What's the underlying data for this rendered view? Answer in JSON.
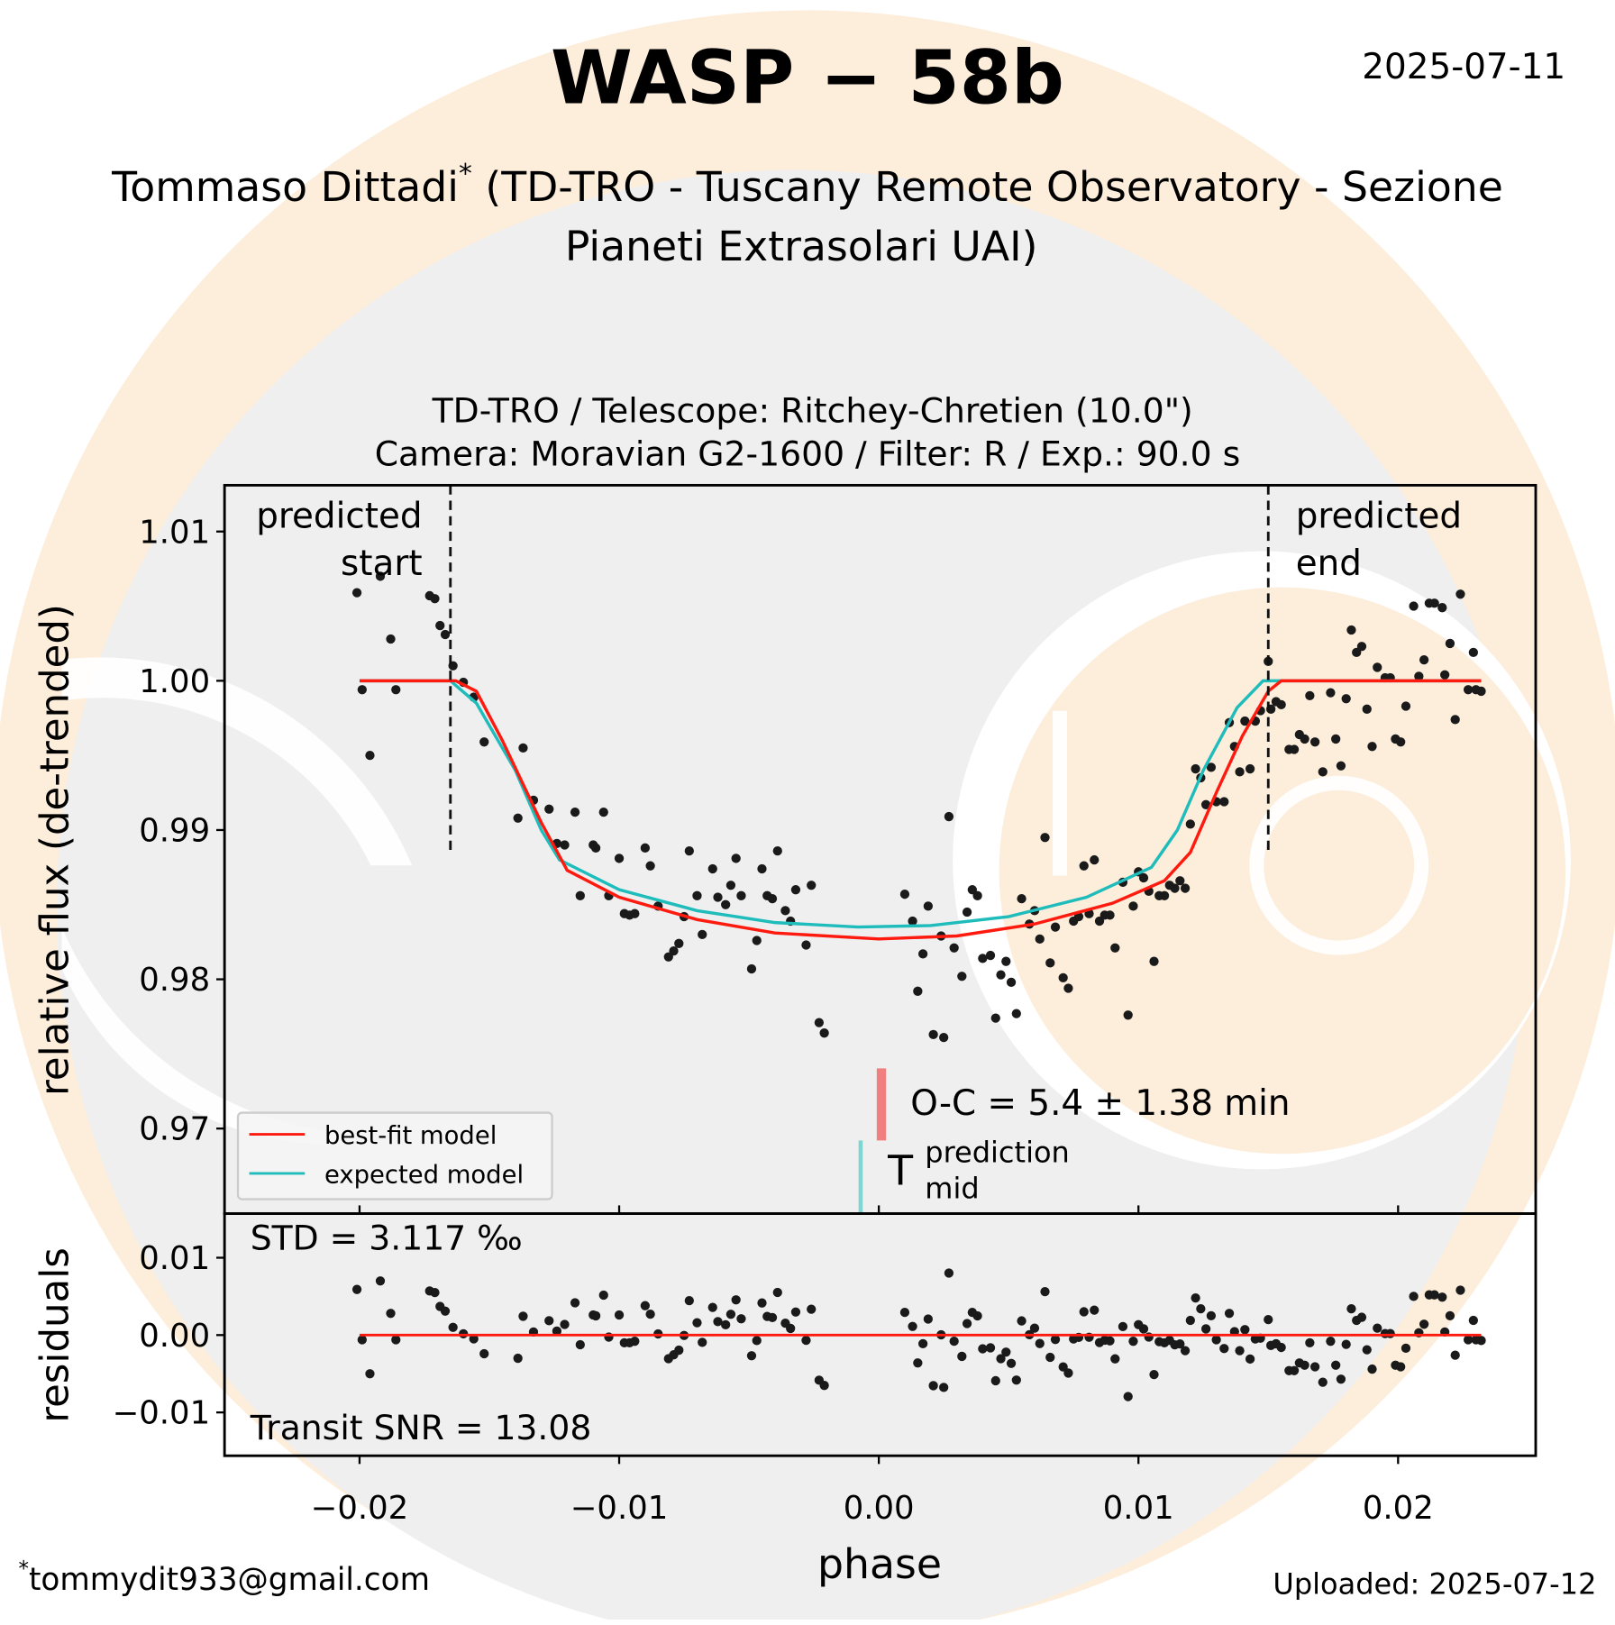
{
  "header": {
    "title": "WASP − 58b",
    "date": "2025-07-11",
    "author": "Tommaso Dittadi",
    "author_mark": "*",
    "affiliation_line1": " (TD-TRO - Tuscany Remote Observatory - Sezione",
    "affiliation_line2": "Pianeti Extrasolari UAI)"
  },
  "chart_subtitle": {
    "line1": "TD-TRO / Telescope: Ritchey-Chretien (10.0\")",
    "line2": "Camera: Moravian G2-1600 / Filter: R / Exp.: 90.0 s"
  },
  "footer": {
    "email_mark": "*",
    "email": "tommydit933@gmail.com",
    "uploaded": "Uploaded: 2025-07-12"
  },
  "colors": {
    "best_fit": "#ff1a0f",
    "expected": "#1fbcbc",
    "points": "#1a1a1a",
    "oc_marker": "#f08080",
    "tmid_marker": "#7fd6d0",
    "bg_orange": "#fdeedb",
    "bg_gray": "#efefef"
  },
  "chart_data": [
    {
      "type": "scatter",
      "panel": "light curve",
      "xlabel": "phase",
      "ylabel": "relative flux (de-trended)",
      "xlim": [
        -0.0252,
        0.0253
      ],
      "ylim": [
        0.9643,
        1.0131
      ],
      "yticks": [
        0.97,
        0.98,
        0.99,
        1.0,
        1.01
      ],
      "ytick_labels": [
        "0.97",
        "0.98",
        "0.99",
        "1.00",
        "1.01"
      ],
      "legend": {
        "placement": "lower-left",
        "entries": [
          "best-fit model",
          "expected model"
        ]
      },
      "annotations": {
        "predicted_start": {
          "label_line1": "predicted",
          "label_line2": "start",
          "phase": -0.0165
        },
        "predicted_end": {
          "label_line1": "predicted",
          "label_line2": "end",
          "phase": 0.015
        },
        "oc": {
          "text": "O-C = 5.4 ± 1.38 min",
          "phase": 0.0001
        },
        "tmid": {
          "main": "T",
          "sup": "prediction",
          "sub": "mid",
          "phase": -0.0007
        }
      },
      "points": [
        [
          -0.0201,
          1.0059
        ],
        [
          -0.0199,
          0.9994
        ],
        [
          -0.0196,
          0.995
        ],
        [
          -0.0192,
          1.007
        ],
        [
          -0.0188,
          1.0028
        ],
        [
          -0.0186,
          0.9994
        ],
        [
          -0.0173,
          1.0057
        ],
        [
          -0.0171,
          1.0055
        ],
        [
          -0.0169,
          1.0037
        ],
        [
          -0.0167,
          1.0031
        ],
        [
          -0.0164,
          1.001
        ],
        [
          -0.016,
          0.9999
        ],
        [
          -0.0156,
          0.9989
        ],
        [
          -0.0152,
          0.9959
        ],
        [
          -0.0139,
          0.9908
        ],
        [
          -0.0137,
          0.9955
        ],
        [
          -0.0133,
          0.992
        ],
        [
          -0.0127,
          0.9914
        ],
        [
          -0.0124,
          0.9891
        ],
        [
          -0.0121,
          0.989
        ],
        [
          -0.0117,
          0.9912
        ],
        [
          -0.0115,
          0.9856
        ],
        [
          -0.011,
          0.989
        ],
        [
          -0.0109,
          0.9888
        ],
        [
          -0.0106,
          0.9912
        ],
        [
          -0.0104,
          0.9856
        ],
        [
          -0.01,
          0.9881
        ],
        [
          -0.0098,
          0.9844
        ],
        [
          -0.0096,
          0.9843
        ],
        [
          -0.0094,
          0.9844
        ],
        [
          -0.009,
          0.9888
        ],
        [
          -0.0088,
          0.9876
        ],
        [
          -0.0085,
          0.9849
        ],
        [
          -0.0081,
          0.9815
        ],
        [
          -0.0079,
          0.9819
        ],
        [
          -0.0077,
          0.9824
        ],
        [
          -0.0075,
          0.9842
        ],
        [
          -0.0073,
          0.9886
        ],
        [
          -0.007,
          0.9856
        ],
        [
          -0.0068,
          0.983
        ],
        [
          -0.0064,
          0.9874
        ],
        [
          -0.0062,
          0.9855
        ],
        [
          -0.0059,
          0.985
        ],
        [
          -0.0057,
          0.9863
        ],
        [
          -0.0055,
          0.9881
        ],
        [
          -0.0053,
          0.9856
        ],
        [
          -0.0049,
          0.9807
        ],
        [
          -0.0047,
          0.9826
        ],
        [
          -0.0045,
          0.9874
        ],
        [
          -0.0043,
          0.9856
        ],
        [
          -0.0041,
          0.9854
        ],
        [
          -0.0039,
          0.9886
        ],
        [
          -0.0036,
          0.9846
        ],
        [
          -0.0034,
          0.9839
        ],
        [
          -0.0032,
          0.986
        ],
        [
          -0.0028,
          0.9823
        ],
        [
          -0.0026,
          0.9863
        ],
        [
          -0.0023,
          0.9771
        ],
        [
          -0.0021,
          0.9764
        ],
        [
          0.001,
          0.9857
        ],
        [
          0.0013,
          0.9839
        ],
        [
          0.0015,
          0.9792
        ],
        [
          0.0017,
          0.9817
        ],
        [
          0.0019,
          0.9849
        ],
        [
          0.0021,
          0.9763
        ],
        [
          0.0024,
          0.9829
        ],
        [
          0.0025,
          0.9761
        ],
        [
          0.0027,
          0.9909
        ],
        [
          0.0029,
          0.9821
        ],
        [
          0.0032,
          0.9802
        ],
        [
          0.0034,
          0.9845
        ],
        [
          0.0036,
          0.986
        ],
        [
          0.0038,
          0.9856
        ],
        [
          0.004,
          0.9814
        ],
        [
          0.0043,
          0.9816
        ],
        [
          0.0045,
          0.9774
        ],
        [
          0.0047,
          0.9803
        ],
        [
          0.0049,
          0.9812
        ],
        [
          0.0051,
          0.9798
        ],
        [
          0.0053,
          0.9777
        ],
        [
          0.0055,
          0.9854
        ],
        [
          0.0058,
          0.9837
        ],
        [
          0.006,
          0.9846
        ],
        [
          0.0062,
          0.9827
        ],
        [
          0.0064,
          0.9895
        ],
        [
          0.0066,
          0.9811
        ],
        [
          0.0068,
          0.9835
        ],
        [
          0.0071,
          0.9801
        ],
        [
          0.0073,
          0.9794
        ],
        [
          0.0075,
          0.9839
        ],
        [
          0.0077,
          0.9842
        ],
        [
          0.0079,
          0.9876
        ],
        [
          0.0081,
          0.9844
        ],
        [
          0.0083,
          0.988
        ],
        [
          0.0085,
          0.9839
        ],
        [
          0.0087,
          0.9843
        ],
        [
          0.0089,
          0.9843
        ],
        [
          0.0091,
          0.9821
        ],
        [
          0.0094,
          0.9865
        ],
        [
          0.0096,
          0.9776
        ],
        [
          0.0098,
          0.9849
        ],
        [
          0.01,
          0.9872
        ],
        [
          0.0102,
          0.9868
        ],
        [
          0.0104,
          0.9859
        ],
        [
          0.0106,
          0.9812
        ],
        [
          0.0108,
          0.9856
        ],
        [
          0.011,
          0.9856
        ],
        [
          0.0112,
          0.9863
        ],
        [
          0.0114,
          0.9861
        ],
        [
          0.0116,
          0.9866
        ],
        [
          0.0118,
          0.9861
        ],
        [
          0.012,
          0.9904
        ],
        [
          0.0122,
          0.9941
        ],
        [
          0.0124,
          0.9935
        ],
        [
          0.0126,
          0.9917
        ],
        [
          0.0128,
          0.9942
        ],
        [
          0.013,
          0.9919
        ],
        [
          0.0133,
          0.9919
        ],
        [
          0.0135,
          0.9972
        ],
        [
          0.0137,
          0.9956
        ],
        [
          0.0139,
          0.9939
        ],
        [
          0.0141,
          0.9973
        ],
        [
          0.0143,
          0.9941
        ],
        [
          0.0145,
          0.9973
        ],
        [
          0.0147,
          0.998
        ],
        [
          0.015,
          1.0013
        ],
        [
          0.0151,
          0.9981
        ],
        [
          0.0153,
          0.9986
        ],
        [
          0.0155,
          0.9984
        ],
        [
          0.0158,
          0.9954
        ],
        [
          0.016,
          0.9954
        ],
        [
          0.0162,
          0.9964
        ],
        [
          0.0164,
          0.9961
        ],
        [
          0.0166,
          0.999
        ],
        [
          0.0168,
          0.9959
        ],
        [
          0.0171,
          0.9939
        ],
        [
          0.0174,
          0.9992
        ],
        [
          0.0176,
          0.9961
        ],
        [
          0.0178,
          0.9943
        ],
        [
          0.018,
          0.9988
        ],
        [
          0.0182,
          1.0034
        ],
        [
          0.0184,
          1.0019
        ],
        [
          0.0186,
          1.0023
        ],
        [
          0.0188,
          0.9981
        ],
        [
          0.019,
          0.9956
        ],
        [
          0.0192,
          1.0009
        ],
        [
          0.0195,
          1.0002
        ],
        [
          0.0197,
          1.0002
        ],
        [
          0.0199,
          0.9961
        ],
        [
          0.0201,
          0.9959
        ],
        [
          0.0203,
          0.9983
        ],
        [
          0.0206,
          1.005
        ],
        [
          0.0208,
          1.0003
        ],
        [
          0.021,
          1.0014
        ],
        [
          0.0212,
          1.0052
        ],
        [
          0.0214,
          1.0052
        ],
        [
          0.0217,
          1.0049
        ],
        [
          0.0218,
          1.0004
        ],
        [
          0.022,
          1.0025
        ],
        [
          0.0222,
          0.9974
        ],
        [
          0.0224,
          1.0058
        ],
        [
          0.0227,
          0.9994
        ],
        [
          0.0229,
          1.0019
        ],
        [
          0.023,
          0.9994
        ],
        [
          0.0232,
          0.9993
        ]
      ],
      "series": [
        {
          "name": "best-fit model",
          "points": [
            [
              -0.02,
              1
            ],
            [
              -0.0163,
              1
            ],
            [
              -0.0155,
              0.9993
            ],
            [
              -0.0145,
              0.996
            ],
            [
              -0.013,
              0.9905
            ],
            [
              -0.012,
              0.9873
            ],
            [
              -0.01,
              0.9855
            ],
            [
              -0.007,
              0.984
            ],
            [
              -0.004,
              0.9831
            ],
            [
              0.0,
              0.9827
            ],
            [
              0.003,
              0.9829
            ],
            [
              0.006,
              0.9837
            ],
            [
              0.009,
              0.9851
            ],
            [
              0.011,
              0.9866
            ],
            [
              0.012,
              0.9885
            ],
            [
              0.013,
              0.9925
            ],
            [
              0.014,
              0.9963
            ],
            [
              0.015,
              0.9993
            ],
            [
              0.0155,
              1
            ],
            [
              0.0232,
              1
            ]
          ]
        },
        {
          "name": "expected model",
          "points": [
            [
              -0.02,
              1
            ],
            [
              -0.0165,
              1
            ],
            [
              -0.0155,
              0.9985
            ],
            [
              -0.014,
              0.994
            ],
            [
              -0.013,
              0.99
            ],
            [
              -0.0123,
              0.988
            ],
            [
              -0.01,
              0.986
            ],
            [
              -0.007,
              0.9846
            ],
            [
              -0.004,
              0.9838
            ],
            [
              -0.0008,
              0.9835
            ],
            [
              0.002,
              0.9836
            ],
            [
              0.005,
              0.9842
            ],
            [
              0.008,
              0.9855
            ],
            [
              0.0105,
              0.9875
            ],
            [
              0.0115,
              0.99
            ],
            [
              0.0125,
              0.994
            ],
            [
              0.0138,
              0.9982
            ],
            [
              0.0148,
              1
            ],
            [
              0.0232,
              1
            ]
          ]
        }
      ]
    },
    {
      "type": "scatter",
      "panel": "residuals",
      "xlabel": "phase",
      "ylabel": "residuals",
      "xlim": [
        -0.0252,
        0.0253
      ],
      "ylim": [
        -0.0156,
        0.0157
      ],
      "yticks": [
        0.01,
        0.0,
        -0.01
      ],
      "ytick_labels": [
        "0.01",
        "0.00",
        "−0.01"
      ],
      "xticks": [
        -0.02,
        -0.01,
        0.0,
        0.01,
        0.02
      ],
      "xtick_labels": [
        "−0.02",
        "−0.01",
        "0.00",
        "0.01",
        "0.02"
      ],
      "std_text": "STD = 3.117 ‰",
      "snr_text": "Transit SNR = 13.08",
      "residuals_of": "best-fit model"
    }
  ]
}
